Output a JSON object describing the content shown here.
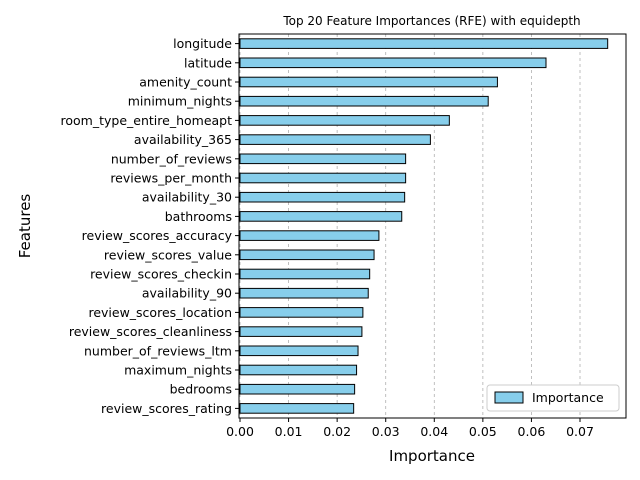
{
  "chart_data": {
    "type": "bar",
    "orientation": "horizontal",
    "title": "Top 20 Feature Importances (RFE) with equidepth",
    "xlabel": "Importance",
    "ylabel": "Features",
    "xlim": [
      0,
      0.0795
    ],
    "xticks": [
      "0.00",
      "0.01",
      "0.02",
      "0.03",
      "0.04",
      "0.05",
      "0.06",
      "0.07"
    ],
    "grid": "x-dashed",
    "legend_position": "bottom-right",
    "categories": [
      "longitude",
      "latitude",
      "amenity_count",
      "minimum_nights",
      "room_type_entire_homeapt",
      "availability_365",
      "number_of_reviews",
      "reviews_per_month",
      "availability_30",
      "bathrooms",
      "review_scores_accuracy",
      "review_scores_value",
      "review_scores_checkin",
      "availability_90",
      "review_scores_location",
      "review_scores_cleanliness",
      "number_of_reviews_ltm",
      "maximum_nights",
      "bedrooms",
      "review_scores_rating"
    ],
    "series": [
      {
        "name": "Importance",
        "color": "#87ceeb",
        "values": [
          0.0757,
          0.063,
          0.053,
          0.0511,
          0.0431,
          0.0392,
          0.0341,
          0.0341,
          0.0339,
          0.0333,
          0.0286,
          0.0276,
          0.0267,
          0.0264,
          0.0253,
          0.0251,
          0.0243,
          0.024,
          0.0236,
          0.0234
        ]
      }
    ]
  }
}
